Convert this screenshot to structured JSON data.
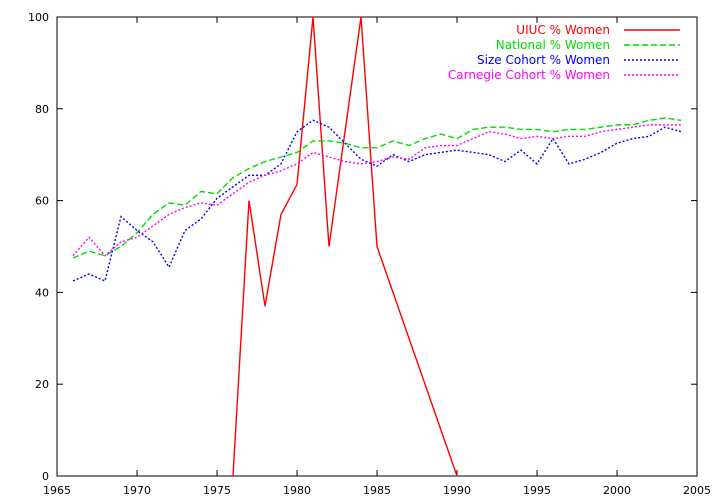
{
  "chart_data": {
    "type": "line",
    "title": "",
    "xlabel": "",
    "ylabel": "",
    "xlim": [
      1965,
      2005
    ],
    "ylim": [
      0,
      100
    ],
    "xticks": [
      1965,
      1970,
      1975,
      1980,
      1985,
      1990,
      1995,
      2000,
      2005
    ],
    "yticks": [
      0,
      20,
      40,
      60,
      80,
      100
    ],
    "grid": false,
    "legend_position": "top-right",
    "series": [
      {
        "name": "UIUC % Women",
        "color": "#ff0000",
        "style": "solid",
        "x": [
          1976,
          1977,
          1978,
          1979,
          1980,
          1981,
          1982,
          1984,
          1985,
          1990
        ],
        "y": [
          0,
          60,
          37,
          57,
          63.5,
          100,
          50,
          100,
          50,
          0
        ]
      },
      {
        "name": "National % Women",
        "color": "#00dd00",
        "style": "dashed",
        "x": [
          1966,
          1967,
          1968,
          1969,
          1970,
          1971,
          1972,
          1973,
          1974,
          1975,
          1976,
          1977,
          1978,
          1979,
          1980,
          1981,
          1982,
          1983,
          1984,
          1985,
          1986,
          1987,
          1988,
          1989,
          1990,
          1991,
          1992,
          1993,
          1994,
          1995,
          1996,
          1997,
          1998,
          1999,
          2000,
          2001,
          2002,
          2003,
          2004
        ],
        "y": [
          47.5,
          49,
          48,
          50,
          53,
          57,
          59.5,
          59,
          62,
          61.5,
          65,
          67,
          68.5,
          69.5,
          70.5,
          73,
          73,
          72.5,
          71.5,
          71.5,
          73,
          72,
          73.5,
          74.5,
          73.5,
          75.5,
          76,
          76,
          75.5,
          75.5,
          75,
          75.5,
          75.5,
          76,
          76.5,
          76.5,
          77.5,
          78,
          77.5
        ]
      },
      {
        "name": "Size Cohort % Women",
        "color": "#0000ff",
        "style": "dotted",
        "x": [
          1966,
          1967,
          1968,
          1969,
          1970,
          1971,
          1972,
          1973,
          1974,
          1975,
          1976,
          1977,
          1978,
          1979,
          1980,
          1981,
          1982,
          1983,
          1984,
          1985,
          1986,
          1987,
          1988,
          1989,
          1990,
          1991,
          1992,
          1993,
          1994,
          1995,
          1996,
          1997,
          1998,
          1999,
          2000,
          2001,
          2002,
          2003,
          2004
        ],
        "y": [
          42.5,
          44,
          42.5,
          56.5,
          53.5,
          51,
          45.5,
          53.5,
          56,
          60.5,
          63,
          65.5,
          65.5,
          68,
          75,
          77.5,
          76,
          72.5,
          69,
          67.5,
          70,
          68.5,
          70,
          70.5,
          71,
          70.5,
          70,
          68.5,
          71,
          68,
          73.5,
          68,
          69,
          70.5,
          72.5,
          73.5,
          74,
          76,
          75
        ]
      },
      {
        "name": "Carnegie Cohort % Women",
        "color": "#ff00ff",
        "style": "dotted",
        "x": [
          1966,
          1967,
          1968,
          1969,
          1970,
          1971,
          1972,
          1973,
          1974,
          1975,
          1976,
          1977,
          1978,
          1979,
          1980,
          1981,
          1982,
          1983,
          1984,
          1985,
          1986,
          1987,
          1988,
          1989,
          1990,
          1991,
          1992,
          1993,
          1994,
          1995,
          1996,
          1997,
          1998,
          1999,
          2000,
          2001,
          2002,
          2003,
          2004
        ],
        "y": [
          48,
          52,
          48,
          51,
          52,
          54.5,
          57,
          58.5,
          59.5,
          59,
          61.5,
          64,
          65.5,
          66.5,
          68,
          70.5,
          69.5,
          68.5,
          68,
          68.5,
          69.5,
          69,
          71.5,
          72,
          72,
          73.5,
          75,
          74.5,
          73.5,
          74,
          73.5,
          74,
          74,
          75,
          75.5,
          76,
          76.5,
          76.5,
          76.5
        ]
      }
    ]
  }
}
